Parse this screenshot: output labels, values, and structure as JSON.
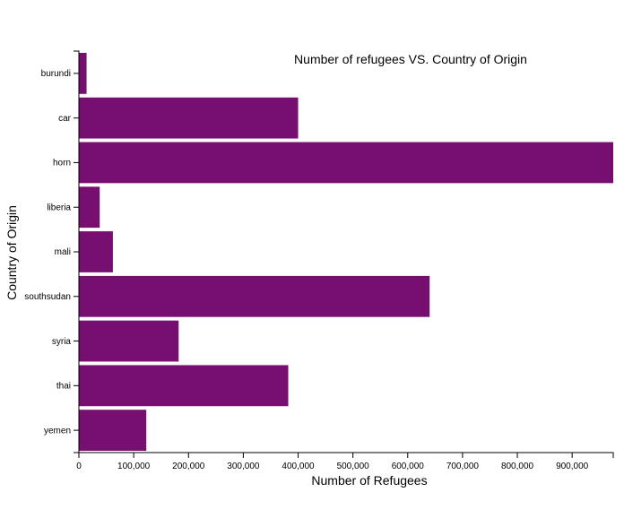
{
  "chart_data": {
    "type": "bar",
    "orientation": "horizontal",
    "title": "Number of refugees VS. Country of Origin",
    "xlabel": "Number of Refugees",
    "ylabel": "Country of Origin",
    "categories": [
      "burundi",
      "car",
      "horn",
      "liberia",
      "mali",
      "southsudan",
      "syria",
      "thai",
      "yemen"
    ],
    "values": [
      14000,
      400000,
      975000,
      38000,
      62000,
      640000,
      182000,
      382000,
      123000
    ],
    "xlim": [
      0,
      975000
    ],
    "xticks": [
      0,
      100000,
      200000,
      300000,
      400000,
      500000,
      600000,
      700000,
      800000,
      900000
    ],
    "xtick_labels": [
      "0",
      "100,000",
      "200,000",
      "300,000",
      "400,000",
      "500,000",
      "600,000",
      "700,000",
      "800,000",
      "900,000"
    ],
    "bar_color": "#760f6f",
    "grid": false,
    "legend": "none"
  }
}
